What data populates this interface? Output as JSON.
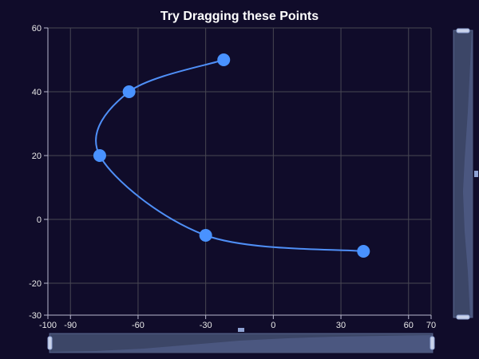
{
  "chart_data": {
    "type": "line",
    "title": "Try Dragging these Points",
    "smooth": true,
    "x": [
      -22,
      -64,
      -77,
      -30,
      40
    ],
    "y": [
      50,
      40,
      20,
      -5,
      -10
    ],
    "xlim": [
      -100,
      70
    ],
    "ylim": [
      -30,
      60
    ],
    "xticks": [
      -100,
      -90,
      -60,
      -30,
      0,
      30,
      60,
      70
    ],
    "yticks": [
      -30,
      -20,
      0,
      20,
      40,
      60
    ],
    "grid": true,
    "colors": {
      "background": "#100c2a",
      "line": "#4f8ff7",
      "point": "#4992ff",
      "grid": "#484753",
      "axis": "#b9b8ce",
      "text": "#eeeeee"
    }
  },
  "controls": {
    "x_zoom": {
      "start": 0,
      "end": 1
    },
    "y_zoom": {
      "start": 0,
      "end": 1
    }
  }
}
